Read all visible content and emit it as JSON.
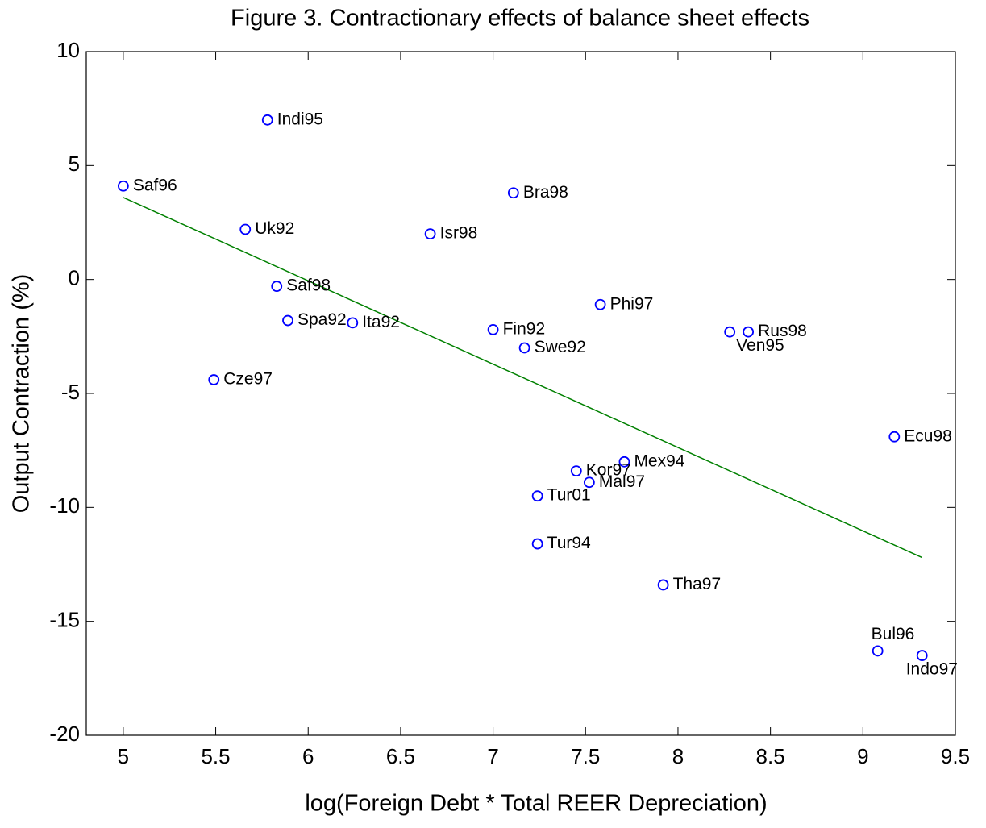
{
  "chart_data": {
    "type": "scatter",
    "title": "Figure 3. Contractionary effects of balance sheet effects",
    "xlabel": "log(Foreign Debt * Total REER Depreciation)",
    "ylabel": "Output Contraction (%)",
    "point_labels": [
      "Saf96",
      "Indi95",
      "Uk92",
      "Saf98",
      "Spa92",
      "Ita92",
      "Cze97",
      "Isr98",
      "Bra98",
      "Fin92",
      "Swe92",
      "Phi97",
      "Ven95",
      "Rus98",
      "Ecu98",
      "Mex94",
      "Kor97",
      "Mal97",
      "Tur01",
      "Tur94",
      "Tha97",
      "Bul96",
      "Indo97"
    ],
    "x": [
      5.0,
      5.78,
      5.66,
      5.83,
      5.89,
      6.24,
      5.49,
      6.66,
      7.11,
      7.0,
      7.17,
      7.58,
      8.28,
      8.38,
      9.17,
      7.71,
      7.45,
      7.52,
      7.24,
      7.24,
      7.92,
      9.08,
      9.32
    ],
    "y": [
      4.1,
      7.0,
      2.2,
      -0.3,
      -1.8,
      -1.9,
      -4.4,
      2.0,
      3.8,
      -2.2,
      -3.0,
      -1.1,
      -2.3,
      -2.3,
      -6.9,
      -8.0,
      -8.4,
      -8.9,
      -9.5,
      -11.6,
      -13.4,
      -16.3,
      -16.5
    ],
    "color": "#0000ff",
    "fit_line": {
      "x": [
        5.0,
        9.32
      ],
      "y": [
        3.6,
        -12.2
      ],
      "color": "#008000"
    },
    "xlim": [
      4.8,
      9.5
    ],
    "xticks": [
      5,
      5.5,
      6,
      6.5,
      7,
      7.5,
      8,
      8.5,
      9,
      9.5
    ],
    "ylim": [
      -20,
      10
    ],
    "yticks": [
      -20,
      -15,
      -10,
      -5,
      0,
      5,
      10
    ]
  }
}
